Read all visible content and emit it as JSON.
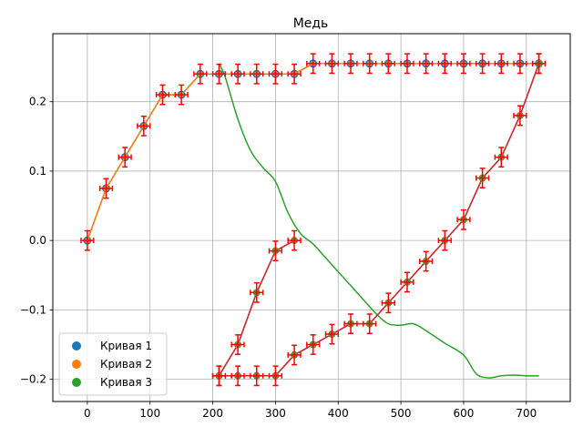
{
  "chart_data": {
    "type": "scatter",
    "title": "Медь",
    "xlabel": "",
    "ylabel": "",
    "xlim": [
      -55,
      770
    ],
    "ylim": [
      -0.232,
      0.298
    ],
    "xticks": [
      0,
      100,
      200,
      300,
      400,
      500,
      600,
      700
    ],
    "xtick_labels": [
      "0",
      "100",
      "200",
      "300",
      "400",
      "500",
      "600",
      "700"
    ],
    "yticks": [
      -0.2,
      -0.1,
      0.0,
      0.1,
      0.2
    ],
    "ytick_labels": [
      "−0.2",
      "−0.1",
      "0.0",
      "0.1",
      "0.2"
    ],
    "grid": true,
    "legend_position": "lower-left",
    "colors": {
      "series1": "#1f77b4",
      "series2": "#ff7f0e",
      "series3": "#2ca02c",
      "errorbar": "#ff0000",
      "fit_line": "#d62728"
    },
    "errorbars": {
      "x_err": 10,
      "y_err": 0.014
    },
    "series": [
      {
        "name": "Кривая 1",
        "color": "#1f77b4",
        "x": [
          0,
          30,
          60,
          90,
          120,
          150,
          180,
          210,
          240,
          270,
          300,
          330,
          360,
          390,
          420,
          450,
          480,
          510,
          540,
          570,
          600,
          630,
          660,
          690,
          720
        ],
        "y": [
          0.0,
          0.075,
          0.12,
          0.165,
          0.21,
          0.21,
          0.24,
          0.24,
          0.24,
          0.24,
          0.24,
          0.24,
          0.255,
          0.255,
          0.255,
          0.255,
          0.255,
          0.255,
          0.255,
          0.255,
          0.255,
          0.255,
          0.255,
          0.255,
          0.255
        ]
      },
      {
        "name": "Кривая 2",
        "color": "#ff7f0e",
        "x": [
          0,
          30,
          60,
          90,
          120,
          150,
          180,
          210,
          240,
          270,
          300,
          330,
          360,
          390,
          420,
          450,
          480,
          510,
          540,
          570,
          600,
          630,
          660,
          690,
          720
        ],
        "y": [
          0.0,
          0.075,
          0.12,
          0.165,
          0.21,
          0.21,
          0.24,
          0.24,
          0.24,
          0.24,
          0.24,
          0.24,
          0.255,
          0.255,
          0.255,
          0.255,
          0.255,
          0.255,
          0.255,
          0.255,
          0.255,
          0.255,
          0.255,
          0.255,
          0.255
        ]
      },
      {
        "name": "Кривая 3",
        "color": "#2ca02c",
        "x": [
          210,
          220,
          240,
          260,
          280,
          300,
          320,
          340,
          360,
          380,
          400,
          430,
          460,
          480,
          500,
          520,
          540,
          570,
          600,
          620,
          640,
          660,
          680,
          700,
          720
        ],
        "y": [
          0.255,
          0.235,
          0.175,
          0.13,
          0.105,
          0.085,
          0.04,
          0.01,
          -0.005,
          -0.025,
          -0.045,
          -0.075,
          -0.105,
          -0.12,
          -0.122,
          -0.12,
          -0.13,
          -0.148,
          -0.165,
          -0.192,
          -0.198,
          -0.195,
          -0.194,
          -0.195,
          -0.195
        ]
      }
    ],
    "error_points": [
      {
        "x": [
          0,
          30,
          60,
          90,
          120,
          150,
          180,
          210,
          240,
          270,
          300,
          330,
          360,
          390,
          420,
          450,
          480,
          510,
          540,
          570,
          600,
          630,
          660,
          690,
          720
        ],
        "y": [
          0.0,
          0.075,
          0.12,
          0.165,
          0.21,
          0.21,
          0.24,
          0.24,
          0.24,
          0.24,
          0.24,
          0.24,
          0.255,
          0.255,
          0.255,
          0.255,
          0.255,
          0.255,
          0.255,
          0.255,
          0.255,
          0.255,
          0.255,
          0.255,
          0.255
        ]
      },
      {
        "x": [
          210,
          240,
          270,
          300,
          330
        ],
        "y": [
          -0.195,
          -0.15,
          -0.075,
          -0.015,
          0.0
        ]
      },
      {
        "x": [
          210,
          240,
          270,
          300,
          330,
          360,
          390,
          420,
          450,
          480,
          510,
          540,
          570,
          600,
          630,
          660,
          690,
          720
        ],
        "y": [
          -0.195,
          -0.195,
          -0.195,
          -0.195,
          -0.165,
          -0.15,
          -0.135,
          -0.12,
          -0.12,
          -0.09,
          -0.06,
          -0.03,
          0.0,
          0.03,
          0.09,
          0.12,
          0.18,
          0.255
        ]
      }
    ],
    "fit_lines": [
      {
        "color": "#d62728",
        "x": [
          210,
          240,
          270,
          300,
          330
        ],
        "y": [
          -0.195,
          -0.15,
          -0.075,
          -0.015,
          0.0
        ]
      },
      {
        "color": "#d62728",
        "x": [
          210,
          240,
          270,
          300,
          330,
          360,
          390,
          420,
          450,
          480,
          510,
          540,
          570,
          600,
          630,
          660,
          690,
          720
        ],
        "y": [
          -0.195,
          -0.195,
          -0.195,
          -0.195,
          -0.165,
          -0.15,
          -0.135,
          -0.12,
          -0.12,
          -0.09,
          -0.06,
          -0.03,
          0.0,
          0.03,
          0.09,
          0.12,
          0.18,
          0.255
        ]
      }
    ]
  }
}
